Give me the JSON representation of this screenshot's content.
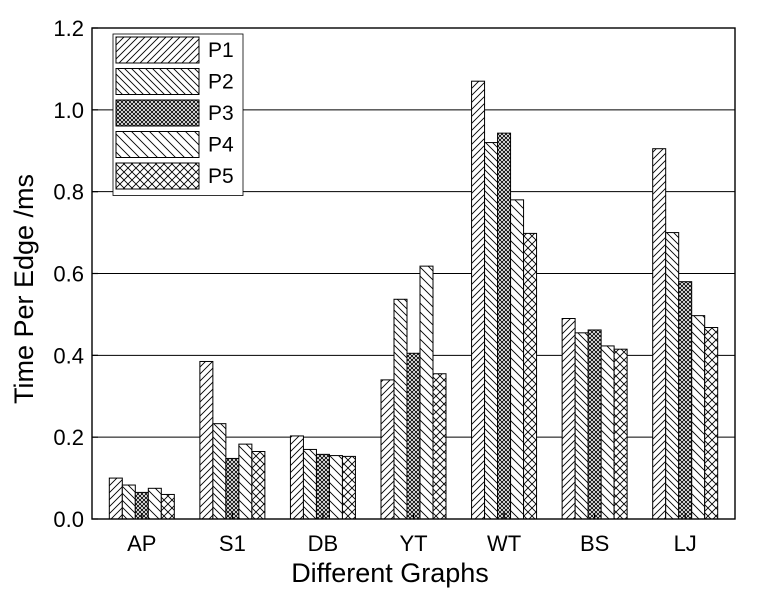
{
  "chart_data": {
    "type": "bar",
    "title": "",
    "xlabel": "Different Graphs",
    "ylabel": "Time Per Edge /ms",
    "ylim": [
      0,
      1.2
    ],
    "yticks": [
      "0.0",
      "0.2",
      "0.4",
      "0.6",
      "0.8",
      "1.0",
      "1.2"
    ],
    "grid": "horizontal",
    "legend_position": "top-left",
    "categories": [
      "AP",
      "S1",
      "DB",
      "YT",
      "WT",
      "BS",
      "LJ"
    ],
    "series": [
      {
        "name": "P1",
        "pattern": "diagonal-right",
        "values": [
          0.1,
          0.385,
          0.203,
          0.34,
          1.07,
          0.49,
          0.905
        ]
      },
      {
        "name": "P2",
        "pattern": "diagonal-left",
        "values": [
          0.083,
          0.233,
          0.17,
          0.537,
          0.92,
          0.455,
          0.7
        ]
      },
      {
        "name": "P3",
        "pattern": "dense-crosshatch",
        "values": [
          0.065,
          0.148,
          0.158,
          0.405,
          0.943,
          0.462,
          0.58
        ]
      },
      {
        "name": "P4",
        "pattern": "diagonal-left-wide",
        "values": [
          0.075,
          0.183,
          0.155,
          0.618,
          0.78,
          0.423,
          0.497
        ]
      },
      {
        "name": "P5",
        "pattern": "crosshatch",
        "values": [
          0.06,
          0.165,
          0.153,
          0.355,
          0.698,
          0.415,
          0.468
        ]
      }
    ]
  }
}
